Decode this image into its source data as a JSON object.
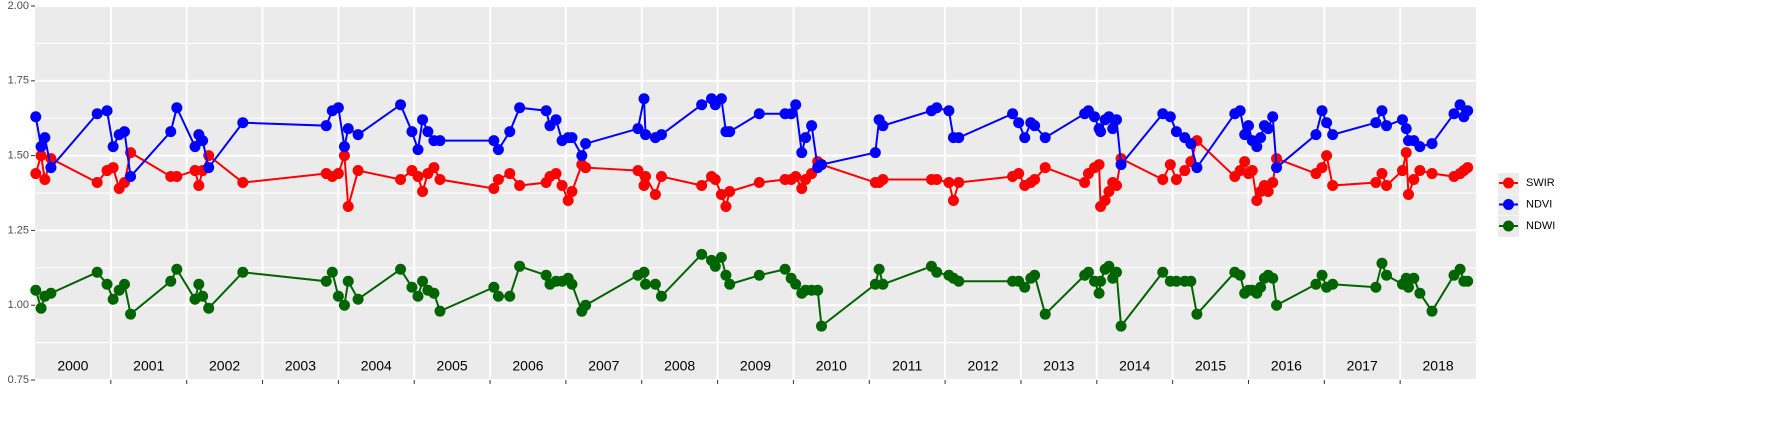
{
  "chart_data": {
    "type": "line",
    "x": [
      2000.01,
      2000.08,
      2000.13,
      2000.21,
      2000.82,
      2000.95,
      2001.03,
      2001.11,
      2001.18,
      2001.26,
      2001.79,
      2001.87,
      2002.11,
      2002.16,
      2002.21,
      2002.29,
      2002.74,
      2003.84,
      2003.92,
      2004.0,
      2004.08,
      2004.13,
      2004.26,
      2004.82,
      2004.97,
      2005.05,
      2005.11,
      2005.18,
      2005.26,
      2005.34,
      2006.05,
      2006.11,
      2006.26,
      2006.39,
      2006.74,
      2006.79,
      2006.87,
      2006.95,
      2007.03,
      2007.08,
      2007.21,
      2007.26,
      2007.95,
      2008.03,
      2008.05,
      2008.18,
      2008.26,
      2008.79,
      2008.92,
      2008.97,
      2009.05,
      2009.11,
      2009.16,
      2009.55,
      2009.89,
      2009.97,
      2010.03,
      2010.11,
      2010.16,
      2010.24,
      2010.32,
      2010.37,
      2011.08,
      2011.13,
      2011.18,
      2011.82,
      2011.89,
      2012.05,
      2012.11,
      2012.18,
      2012.89,
      2012.97,
      2013.05,
      2013.13,
      2013.18,
      2013.32,
      2013.84,
      2013.89,
      2013.97,
      2014.03,
      2014.05,
      2014.11,
      2014.16,
      2014.21,
      2014.26,
      2014.32,
      2014.87,
      2014.97,
      2015.05,
      2015.16,
      2015.24,
      2015.32,
      2015.82,
      2015.89,
      2015.95,
      2016.0,
      2016.05,
      2016.11,
      2016.16,
      2016.21,
      2016.26,
      2016.32,
      2016.37,
      2016.89,
      2016.97,
      2017.03,
      2017.11,
      2017.68,
      2017.76,
      2017.82,
      2018.03,
      2018.08,
      2018.11,
      2018.18,
      2018.26,
      2018.42,
      2018.71,
      2018.79,
      2018.84,
      2018.89
    ],
    "series": [
      {
        "name": "SWIR",
        "color": "#ff0000",
        "values": [
          1.44,
          1.5,
          1.42,
          1.49,
          1.41,
          1.45,
          1.46,
          1.39,
          1.41,
          1.51,
          1.43,
          1.43,
          1.45,
          1.4,
          1.45,
          1.5,
          1.41,
          1.44,
          1.43,
          1.44,
          1.5,
          1.33,
          1.45,
          1.42,
          1.45,
          1.43,
          1.38,
          1.44,
          1.46,
          1.42,
          1.39,
          1.42,
          1.44,
          1.4,
          1.41,
          1.43,
          1.44,
          1.4,
          1.35,
          1.38,
          1.47,
          1.46,
          1.45,
          1.4,
          1.43,
          1.37,
          1.43,
          1.4,
          1.43,
          1.42,
          1.37,
          1.33,
          1.38,
          1.41,
          1.42,
          1.42,
          1.43,
          1.39,
          1.42,
          1.44,
          1.48,
          1.47,
          1.41,
          1.41,
          1.42,
          1.42,
          1.42,
          1.41,
          1.35,
          1.41,
          1.43,
          1.44,
          1.4,
          1.41,
          1.42,
          1.46,
          1.41,
          1.44,
          1.46,
          1.47,
          1.33,
          1.35,
          1.38,
          1.41,
          1.4,
          1.49,
          1.42,
          1.47,
          1.42,
          1.45,
          1.48,
          1.55,
          1.43,
          1.45,
          1.48,
          1.44,
          1.45,
          1.35,
          1.38,
          1.4,
          1.38,
          1.41,
          1.49,
          1.44,
          1.46,
          1.5,
          1.4,
          1.41,
          1.44,
          1.4,
          1.45,
          1.51,
          1.37,
          1.42,
          1.45,
          1.44,
          1.43,
          1.44,
          1.45,
          1.46
        ]
      },
      {
        "name": "NDVI",
        "color": "#0000ff",
        "values": [
          1.63,
          1.53,
          1.56,
          1.46,
          1.64,
          1.65,
          1.53,
          1.57,
          1.58,
          1.43,
          1.58,
          1.66,
          1.53,
          1.57,
          1.55,
          1.46,
          1.61,
          1.6,
          1.65,
          1.66,
          1.53,
          1.59,
          1.57,
          1.67,
          1.58,
          1.52,
          1.62,
          1.58,
          1.55,
          1.55,
          1.55,
          1.52,
          1.58,
          1.66,
          1.65,
          1.6,
          1.62,
          1.55,
          1.56,
          1.56,
          1.5,
          1.54,
          1.59,
          1.69,
          1.57,
          1.56,
          1.57,
          1.67,
          1.69,
          1.67,
          1.69,
          1.58,
          1.58,
          1.64,
          1.64,
          1.64,
          1.67,
          1.51,
          1.56,
          1.6,
          1.46,
          1.47,
          1.51,
          1.62,
          1.6,
          1.65,
          1.66,
          1.65,
          1.56,
          1.56,
          1.64,
          1.61,
          1.56,
          1.61,
          1.6,
          1.56,
          1.64,
          1.65,
          1.63,
          1.59,
          1.58,
          1.62,
          1.63,
          1.59,
          1.62,
          1.47,
          1.64,
          1.63,
          1.58,
          1.56,
          1.54,
          1.46,
          1.64,
          1.65,
          1.57,
          1.6,
          1.55,
          1.53,
          1.56,
          1.6,
          1.59,
          1.63,
          1.46,
          1.57,
          1.65,
          1.61,
          1.57,
          1.61,
          1.65,
          1.6,
          1.62,
          1.59,
          1.55,
          1.55,
          1.53,
          1.54,
          1.64,
          1.67,
          1.63,
          1.65
        ]
      },
      {
        "name": "NDWI",
        "color": "#006400",
        "values": [
          1.05,
          0.99,
          1.03,
          1.04,
          1.11,
          1.07,
          1.02,
          1.05,
          1.07,
          0.97,
          1.08,
          1.12,
          1.02,
          1.07,
          1.03,
          0.99,
          1.11,
          1.08,
          1.11,
          1.03,
          1.0,
          1.08,
          1.02,
          1.12,
          1.06,
          1.03,
          1.08,
          1.05,
          1.04,
          0.98,
          1.06,
          1.03,
          1.03,
          1.13,
          1.1,
          1.07,
          1.08,
          1.08,
          1.09,
          1.07,
          0.98,
          1.0,
          1.1,
          1.11,
          1.07,
          1.07,
          1.03,
          1.17,
          1.15,
          1.13,
          1.16,
          1.1,
          1.07,
          1.1,
          1.12,
          1.09,
          1.07,
          1.04,
          1.05,
          1.05,
          1.05,
          0.93,
          1.07,
          1.12,
          1.07,
          1.13,
          1.11,
          1.1,
          1.09,
          1.08,
          1.08,
          1.08,
          1.06,
          1.09,
          1.1,
          0.97,
          1.1,
          1.11,
          1.08,
          1.04,
          1.08,
          1.12,
          1.13,
          1.09,
          1.11,
          0.93,
          1.11,
          1.08,
          1.08,
          1.08,
          1.08,
          0.97,
          1.11,
          1.1,
          1.04,
          1.05,
          1.05,
          1.04,
          1.06,
          1.09,
          1.1,
          1.09,
          1.0,
          1.07,
          1.1,
          1.06,
          1.07,
          1.06,
          1.14,
          1.1,
          1.07,
          1.09,
          1.06,
          1.09,
          1.04,
          0.98,
          1.1,
          1.12,
          1.08,
          1.08
        ]
      }
    ],
    "xlim": [
      2000,
      2019
    ],
    "xticks": [
      2001,
      2002,
      2003,
      2004,
      2005,
      2006,
      2007,
      2008,
      2009,
      2010,
      2011,
      2012,
      2013,
      2014,
      2015,
      2016,
      2017,
      2018
    ],
    "xlabels": [
      {
        "value": 2000.5,
        "label": "2000"
      },
      {
        "value": 2001.5,
        "label": "2001"
      },
      {
        "value": 2002.5,
        "label": "2002"
      },
      {
        "value": 2003.5,
        "label": "2003"
      },
      {
        "value": 2004.5,
        "label": "2004"
      },
      {
        "value": 2005.5,
        "label": "2005"
      },
      {
        "value": 2006.5,
        "label": "2006"
      },
      {
        "value": 2007.5,
        "label": "2007"
      },
      {
        "value": 2008.5,
        "label": "2008"
      },
      {
        "value": 2009.5,
        "label": "2009"
      },
      {
        "value": 2010.5,
        "label": "2010"
      },
      {
        "value": 2011.5,
        "label": "2011"
      },
      {
        "value": 2012.5,
        "label": "2012"
      },
      {
        "value": 2013.5,
        "label": "2013"
      },
      {
        "value": 2014.5,
        "label": "2014"
      },
      {
        "value": 2015.5,
        "label": "2015"
      },
      {
        "value": 2016.5,
        "label": "2016"
      },
      {
        "value": 2017.5,
        "label": "2017"
      },
      {
        "value": 2018.5,
        "label": "2018"
      }
    ],
    "ylim": [
      0.75,
      2.0
    ],
    "yticks": [
      {
        "value": 0.75,
        "label": "0.75"
      },
      {
        "value": 1.0,
        "label": "1.00"
      },
      {
        "value": 1.25,
        "label": "1.25"
      },
      {
        "value": 1.5,
        "label": "1.50"
      },
      {
        "value": 1.75,
        "label": "1.75"
      },
      {
        "value": 2.0,
        "label": "2.00"
      }
    ],
    "grid": true,
    "legend": "right"
  }
}
